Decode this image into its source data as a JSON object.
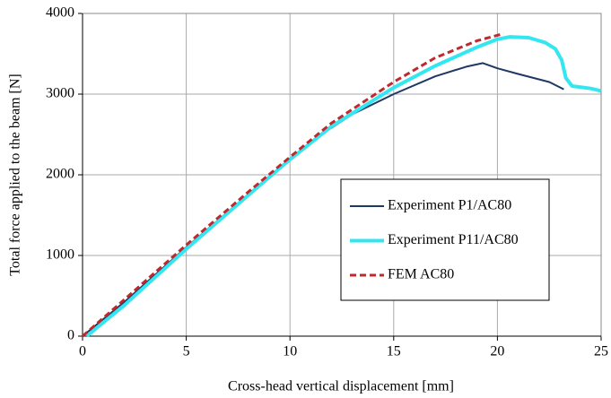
{
  "chart_data": {
    "type": "line",
    "xlabel": "Cross-head vertical displacement [mm]",
    "ylabel": "Total force applied to the beam [N]",
    "xlim": [
      0,
      25
    ],
    "xticks": [
      0,
      5,
      10,
      15,
      20,
      25
    ],
    "ylim": [
      0,
      4000
    ],
    "yticks": [
      0,
      1000,
      2000,
      3000,
      4000
    ],
    "grid": true,
    "legend": "lower right",
    "series": [
      {
        "name": "Experiment P1/AC80",
        "color": "#1f3864",
        "dash": "solid",
        "width": 2,
        "x": [
          0,
          2,
          5,
          8,
          10,
          11.5,
          13,
          15,
          17,
          18.5,
          19.3,
          20,
          21,
          22.5,
          23.2
        ],
        "values": [
          0,
          420,
          1100,
          1760,
          2200,
          2500,
          2750,
          3000,
          3220,
          3340,
          3385,
          3320,
          3250,
          3150,
          3060
        ]
      },
      {
        "name": "Experiment P11/AC80",
        "color": "#33e6f0",
        "dash": "solid",
        "width": 4,
        "x": [
          0.2,
          2,
          5,
          8,
          10,
          12,
          15,
          17,
          19,
          20,
          20.6,
          21.5,
          22.3,
          22.8,
          23.1,
          23.3,
          23.6,
          24.5,
          25
        ],
        "values": [
          0,
          380,
          1080,
          1750,
          2190,
          2600,
          3080,
          3350,
          3580,
          3680,
          3710,
          3700,
          3640,
          3560,
          3420,
          3200,
          3100,
          3070,
          3040
        ]
      },
      {
        "name": "FEM AC80",
        "color": "#c0282d",
        "dash": "dashed",
        "width": 3,
        "x": [
          0,
          2,
          5,
          8,
          10,
          12,
          15,
          17,
          19,
          20.3
        ],
        "values": [
          0,
          450,
          1130,
          1790,
          2220,
          2640,
          3150,
          3450,
          3660,
          3750
        ]
      }
    ]
  }
}
